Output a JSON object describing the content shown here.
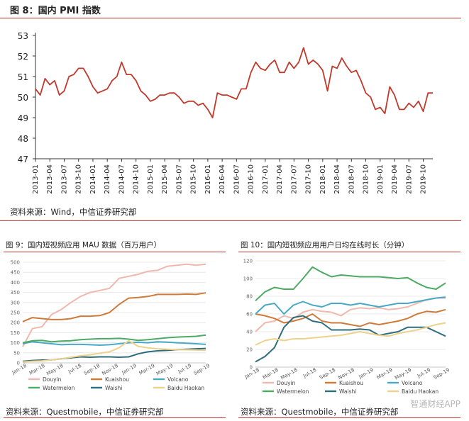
{
  "fig8": {
    "title": "图 8：国内 PMI 指数",
    "source": "资料来源：Wind，中信证券研究部"
  },
  "fig9": {
    "title": "图 9：国内短视频应用 MAU 数据（百万用户）",
    "source": "资料来源：Questmobile，中信证券研究部"
  },
  "fig10": {
    "title": "图 10：国内短视频应用用户日均在线时长（分钟）",
    "source": "资料来源：Questmobile，中信证券研究部"
  },
  "watermark": "智通财经APP",
  "chart_data": [
    {
      "id": "pmi",
      "type": "line",
      "title": "国内 PMI 指数",
      "ylim": [
        47,
        53
      ],
      "yticks": [
        47,
        48,
        49,
        50,
        51,
        52,
        53
      ],
      "grid": false,
      "start": "2013-01",
      "xticks": [
        "2013-01",
        "2013-04",
        "2013-07",
        "2013-10",
        "2014-01",
        "2014-04",
        "2014-07",
        "2014-10",
        "2015-01",
        "2015-04",
        "2015-07",
        "2015-10",
        "2016-01",
        "2016-04",
        "2016-07",
        "2016-10",
        "2017-01",
        "2017-04",
        "2017-07",
        "2017-10",
        "2018-01",
        "2018-04",
        "2018-07",
        "2018-10",
        "2019-01",
        "2019-04",
        "2019-07",
        "2019-10"
      ],
      "color": "#c0392b",
      "series": [
        {
          "name": "PMI",
          "values": [
            50.4,
            50.1,
            50.9,
            50.6,
            50.8,
            50.1,
            50.3,
            51.0,
            51.1,
            51.4,
            51.4,
            51.0,
            50.5,
            50.2,
            50.3,
            50.4,
            50.8,
            51.0,
            51.7,
            51.1,
            51.1,
            50.8,
            50.3,
            50.1,
            49.8,
            49.9,
            50.1,
            50.1,
            50.2,
            50.2,
            50.0,
            49.7,
            49.8,
            49.8,
            49.6,
            49.7,
            49.4,
            49.0,
            50.2,
            50.1,
            50.1,
            50.0,
            49.9,
            50.4,
            50.4,
            51.2,
            51.7,
            51.4,
            51.3,
            51.6,
            51.8,
            51.2,
            51.2,
            51.7,
            51.4,
            51.7,
            52.4,
            51.6,
            51.8,
            51.6,
            51.3,
            50.3,
            51.5,
            51.4,
            51.9,
            51.5,
            51.2,
            51.3,
            50.8,
            50.2,
            50.0,
            49.4,
            49.5,
            49.2,
            50.5,
            50.1,
            49.4,
            49.4,
            49.7,
            49.5,
            49.8,
            49.3,
            50.2,
            50.2
          ]
        }
      ]
    },
    {
      "id": "mau",
      "type": "line",
      "title": "国内短视频应用 MAU 数据（百万用户）",
      "ylim": [
        0,
        500
      ],
      "yticks": [
        0,
        50,
        100,
        150,
        200,
        250,
        300,
        350,
        400,
        450,
        500
      ],
      "xticks": [
        "Jan-18",
        "Mar-18",
        "May-18",
        "Jul-18",
        "Sep-18",
        "Nov-18",
        "Jan-19",
        "Mar-19",
        "May-19",
        "Jul-19",
        "Sep-19"
      ],
      "legend_position": "bottom",
      "grid": true,
      "series": [
        {
          "name": "Douyin",
          "color": "#f0b8ac",
          "values": [
            80,
            170,
            180,
            240,
            265,
            300,
            330,
            350,
            360,
            370,
            420,
            430,
            440,
            455,
            460,
            480,
            485,
            490,
            485,
            490
          ]
        },
        {
          "name": "Kuaishou",
          "color": "#d07a3a",
          "values": [
            205,
            225,
            220,
            215,
            215,
            220,
            232,
            232,
            235,
            250,
            290,
            322,
            325,
            330,
            340,
            340,
            340,
            342,
            340,
            348
          ]
        },
        {
          "name": "Volcano",
          "color": "#47a9c6",
          "values": [
            95,
            105,
            100,
            95,
            90,
            92,
            92,
            90,
            88,
            90,
            95,
            100,
            102,
            100,
            105,
            103,
            100,
            98,
            95,
            92
          ]
        },
        {
          "name": "Watermelon",
          "color": "#4caa63",
          "values": [
            100,
            110,
            112,
            105,
            108,
            110,
            115,
            118,
            120,
            120,
            122,
            118,
            112,
            115,
            120,
            125,
            128,
            130,
            132,
            138
          ]
        },
        {
          "name": "Waishi",
          "color": "#2e6d7e",
          "values": [
            8,
            12,
            14,
            15,
            20,
            25,
            30,
            28,
            30,
            30,
            28,
            30,
            45,
            55,
            60,
            62,
            66,
            68,
            70,
            72
          ]
        },
        {
          "name": "Baidu Haokan",
          "color": "#eed28c",
          "values": [
            5,
            8,
            10,
            15,
            20,
            28,
            35,
            40,
            48,
            55,
            75,
            110,
            82,
            75,
            70,
            68,
            66,
            65,
            64,
            62
          ]
        }
      ]
    },
    {
      "id": "duration",
      "type": "line",
      "title": "国内短视频应用用户日均在线时长（分钟）",
      "ylim": [
        0,
        120
      ],
      "yticks": [
        0,
        20,
        40,
        60,
        80,
        100,
        120
      ],
      "xticks": [
        "Jan-18",
        "Mar-18",
        "May-18",
        "Jul-18",
        "Sep-18",
        "Nov-18",
        "Jan-19",
        "Mar-19",
        "May-19",
        "Jul-19",
        "Sep-19"
      ],
      "legend_position": "bottom",
      "grid": true,
      "series": [
        {
          "name": "Douyin",
          "color": "#f0b8ac",
          "values": [
            40,
            50,
            52,
            58,
            55,
            62,
            65,
            63,
            62,
            58,
            65,
            67,
            66,
            67,
            65,
            66,
            68,
            72,
            76,
            78,
            78
          ]
        },
        {
          "name": "Kuaishou",
          "color": "#d07a3a",
          "values": [
            60,
            58,
            55,
            50,
            52,
            55,
            60,
            52,
            50,
            50,
            48,
            46,
            50,
            48,
            50,
            52,
            55,
            60,
            63,
            62,
            65
          ]
        },
        {
          "name": "Volcano",
          "color": "#47a9c6",
          "values": [
            60,
            70,
            72,
            60,
            70,
            74,
            70,
            68,
            72,
            72,
            70,
            72,
            70,
            68,
            70,
            72,
            72,
            74,
            76,
            78,
            79
          ]
        },
        {
          "name": "Watermelon",
          "color": "#4caa63",
          "values": [
            75,
            85,
            90,
            88,
            88,
            100,
            113,
            107,
            102,
            104,
            103,
            102,
            102,
            102,
            101,
            100,
            101,
            95,
            90,
            88,
            95
          ]
        },
        {
          "name": "Waishi",
          "color": "#2e6d7e",
          "values": [
            6,
            12,
            22,
            45,
            56,
            58,
            52,
            50,
            42,
            42,
            42,
            43,
            42,
            36,
            38,
            40,
            45,
            45,
            45,
            40,
            35
          ]
        },
        {
          "name": "Baidu Haokan",
          "color": "#eed28c",
          "values": [
            25,
            30,
            32,
            30,
            32,
            32,
            33,
            34,
            35,
            36,
            38,
            40,
            38,
            36,
            35,
            38,
            40,
            42,
            45,
            48,
            50
          ]
        }
      ]
    }
  ]
}
